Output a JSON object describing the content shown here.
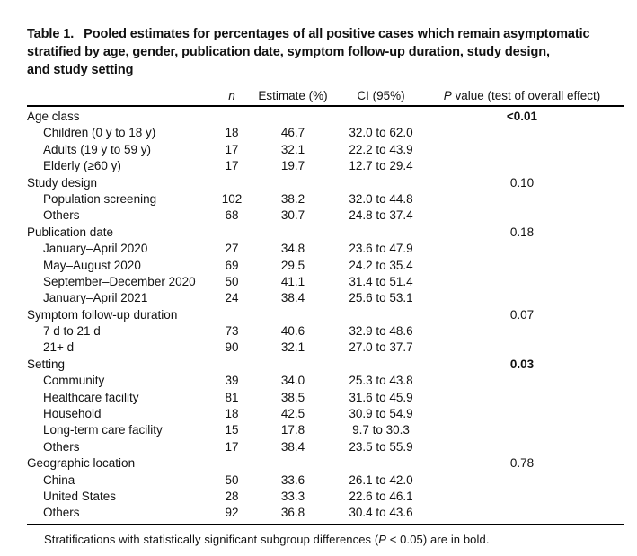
{
  "colors": {
    "background": "#ffffff",
    "text": "#111111",
    "rule": "#000000"
  },
  "table": {
    "title_label": "Table 1.",
    "title_lines": [
      "Pooled estimates for percentages of all positive cases which remain asymptomatic",
      "stratified by age, gender, publication date, symptom follow-up duration, study design,",
      "and study setting"
    ],
    "columns": {
      "n": "n",
      "estimate": "Estimate (%)",
      "ci": "CI (95%)",
      "p_symbol": "P",
      "p_rest": " value (test of overall effect)"
    },
    "rows": [
      {
        "label": "Age class",
        "indent": false,
        "n": "",
        "estimate": "",
        "ci": "",
        "p": "<0.01",
        "p_bold": true
      },
      {
        "label": "Children (0 y to 18 y)",
        "indent": true,
        "n": "18",
        "estimate": "46.7",
        "ci": "32.0 to 62.0",
        "p": "",
        "p_bold": false
      },
      {
        "label": "Adults (19 y to 59 y)",
        "indent": true,
        "n": "17",
        "estimate": "32.1",
        "ci": "22.2 to 43.9",
        "p": "",
        "p_bold": false
      },
      {
        "label": "Elderly (≥60 y)",
        "indent": true,
        "n": "17",
        "estimate": "19.7",
        "ci": "12.7 to 29.4",
        "p": "",
        "p_bold": false
      },
      {
        "label": "Study design",
        "indent": false,
        "n": "",
        "estimate": "",
        "ci": "",
        "p": "0.10",
        "p_bold": false
      },
      {
        "label": "Population screening",
        "indent": true,
        "n": "102",
        "estimate": "38.2",
        "ci": "32.0 to 44.8",
        "p": "",
        "p_bold": false
      },
      {
        "label": "Others",
        "indent": true,
        "n": "68",
        "estimate": "30.7",
        "ci": "24.8 to 37.4",
        "p": "",
        "p_bold": false
      },
      {
        "label": "Publication date",
        "indent": false,
        "n": "",
        "estimate": "",
        "ci": "",
        "p": "0.18",
        "p_bold": false
      },
      {
        "label": "January–April 2020",
        "indent": true,
        "n": "27",
        "estimate": "34.8",
        "ci": "23.6 to 47.9",
        "p": "",
        "p_bold": false
      },
      {
        "label": "May–August 2020",
        "indent": true,
        "n": "69",
        "estimate": "29.5",
        "ci": "24.2 to 35.4",
        "p": "",
        "p_bold": false
      },
      {
        "label": "September–December 2020",
        "indent": true,
        "n": "50",
        "estimate": "41.1",
        "ci": "31.4 to 51.4",
        "p": "",
        "p_bold": false
      },
      {
        "label": "January–April 2021",
        "indent": true,
        "n": "24",
        "estimate": "38.4",
        "ci": "25.6 to 53.1",
        "p": "",
        "p_bold": false
      },
      {
        "label": "Symptom follow-up duration",
        "indent": false,
        "n": "",
        "estimate": "",
        "ci": "",
        "p": "0.07",
        "p_bold": false
      },
      {
        "label": "7 d to 21 d",
        "indent": true,
        "n": "73",
        "estimate": "40.6",
        "ci": "32.9 to 48.6",
        "p": "",
        "p_bold": false
      },
      {
        "label": "21+ d",
        "indent": true,
        "n": "90",
        "estimate": "32.1",
        "ci": "27.0 to 37.7",
        "p": "",
        "p_bold": false
      },
      {
        "label": "Setting",
        "indent": false,
        "n": "",
        "estimate": "",
        "ci": "",
        "p": "0.03",
        "p_bold": true
      },
      {
        "label": "Community",
        "indent": true,
        "n": "39",
        "estimate": "34.0",
        "ci": "25.3 to 43.8",
        "p": "",
        "p_bold": false
      },
      {
        "label": "Healthcare facility",
        "indent": true,
        "n": "81",
        "estimate": "38.5",
        "ci": "31.6 to 45.9",
        "p": "",
        "p_bold": false
      },
      {
        "label": "Household",
        "indent": true,
        "n": "18",
        "estimate": "42.5",
        "ci": "30.9 to 54.9",
        "p": "",
        "p_bold": false
      },
      {
        "label": "Long-term care facility",
        "indent": true,
        "n": "15",
        "estimate": "17.8",
        "ci": "9.7 to 30.3",
        "p": "",
        "p_bold": false
      },
      {
        "label": "Others",
        "indent": true,
        "n": "17",
        "estimate": "38.4",
        "ci": "23.5 to 55.9",
        "p": "",
        "p_bold": false
      },
      {
        "label": "Geographic location",
        "indent": false,
        "n": "",
        "estimate": "",
        "ci": "",
        "p": "0.78",
        "p_bold": false
      },
      {
        "label": "China",
        "indent": true,
        "n": "50",
        "estimate": "33.6",
        "ci": "26.1 to 42.0",
        "p": "",
        "p_bold": false
      },
      {
        "label": "United States",
        "indent": true,
        "n": "28",
        "estimate": "33.3",
        "ci": "22.6 to 46.1",
        "p": "",
        "p_bold": false
      },
      {
        "label": "Others",
        "indent": true,
        "n": "92",
        "estimate": "36.8",
        "ci": "30.4 to 43.6",
        "p": "",
        "p_bold": false
      }
    ],
    "footnote": {
      "pre": "Stratifications with statistically significant subgroup differences (",
      "p_symbol": "P",
      "post": " < 0.05) are in bold."
    }
  }
}
